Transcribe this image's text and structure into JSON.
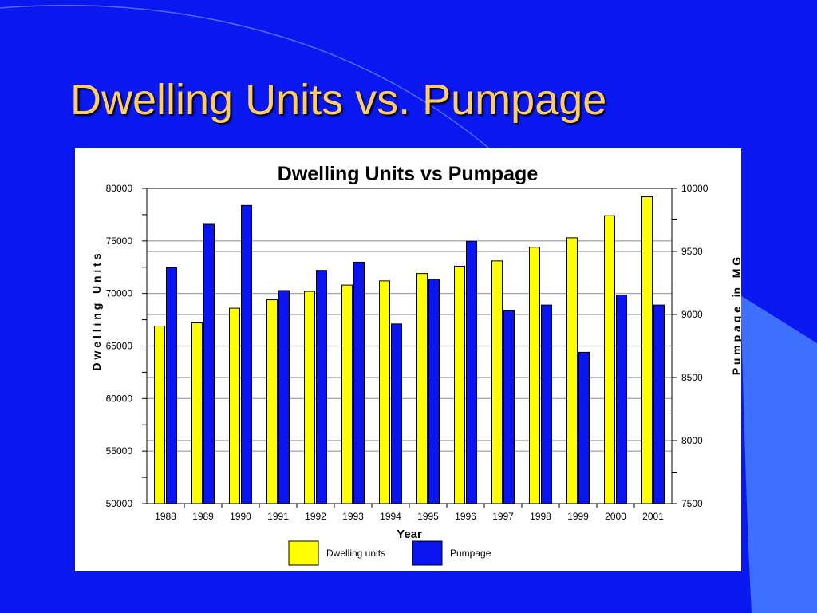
{
  "slide": {
    "title": "Dwelling Units vs. Pumpage"
  },
  "colors": {
    "background": "#0A18F0",
    "title": "#FFCC66",
    "dwelling": "#FFFF00",
    "pumpage": "#0A14F0"
  },
  "chart_data": {
    "type": "bar",
    "title": "Dwelling Units vs Pumpage",
    "xlabel": "Year",
    "ylabel": "D w e l l i n g   U n i t s",
    "y2label": "P u m p a g e   in   M G",
    "categories": [
      "1988",
      "1989",
      "1990",
      "1991",
      "1992",
      "1993",
      "1994",
      "1995",
      "1996",
      "1997",
      "1998",
      "1999",
      "2000",
      "2001"
    ],
    "ylim": [
      50000,
      80000
    ],
    "y2lim": [
      7500,
      10000
    ],
    "yticks": [
      "50000",
      "55000",
      "60000",
      "65000",
      "70000",
      "75000",
      "80000"
    ],
    "y2ticks": [
      "7500",
      "8000",
      "8500",
      "9000",
      "9500",
      "10000"
    ],
    "grid": true,
    "legend_position": "bottom",
    "series": [
      {
        "name": "Dwelling units",
        "axis": "left",
        "values": [
          66900,
          67200,
          68600,
          69400,
          70200,
          70800,
          71200,
          71900,
          72600,
          73100,
          74400,
          75300,
          77400,
          79200
        ]
      },
      {
        "name": "Pumpage",
        "axis": "right",
        "values": [
          9370,
          9715,
          9865,
          9190,
          9350,
          9415,
          8925,
          9280,
          9580,
          9030,
          9075,
          8700,
          9155,
          9075
        ]
      }
    ]
  }
}
